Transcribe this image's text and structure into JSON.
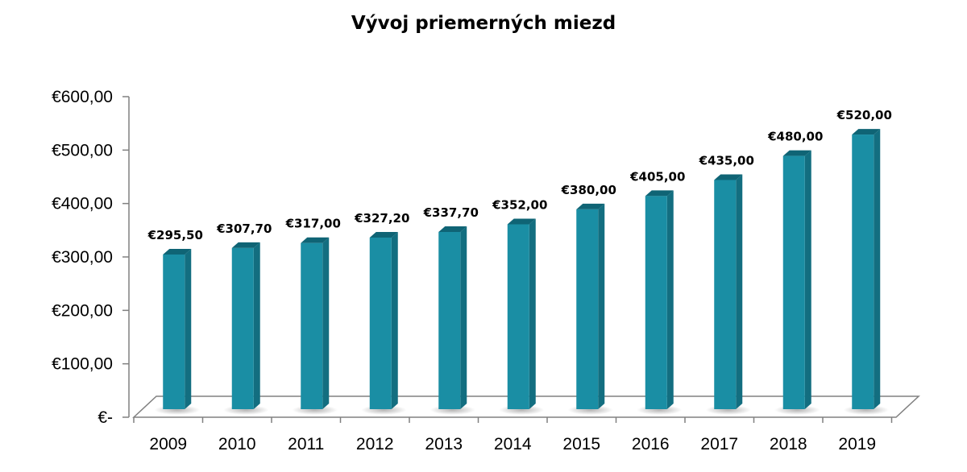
{
  "chart_data": {
    "type": "bar",
    "title": "Vývoj priemerných miezd",
    "xlabel": "",
    "ylabel": "",
    "categories": [
      "2009",
      "2010",
      "2011",
      "2012",
      "2013",
      "2014",
      "2015",
      "2016",
      "2017",
      "2018",
      "2019"
    ],
    "values": [
      295.5,
      307.7,
      317.0,
      327.2,
      337.7,
      352.0,
      380.0,
      405.0,
      435.0,
      480.0,
      520.0
    ],
    "data_labels": [
      "€295,50",
      "€307,70",
      "€317,00",
      "€327,20",
      "€337,70",
      "€352,00",
      "€380,00",
      "€405,00",
      "€435,00",
      "€480,00",
      "€520,00"
    ],
    "ylim": [
      0,
      600
    ],
    "yticks": [
      0,
      100,
      200,
      300,
      400,
      500,
      600
    ],
    "ytick_labels": [
      "€-",
      "€100,00",
      "€200,00",
      "€300,00",
      "€400,00",
      "€500,00",
      "€600,00"
    ],
    "grid": false,
    "legend": "none",
    "style": "3d-column",
    "colors": {
      "bar_front": "#1a8ea4",
      "bar_side": "#136e80",
      "bar_top": "#0f6475",
      "floor": "#ffffff",
      "axis": "#808080"
    }
  }
}
